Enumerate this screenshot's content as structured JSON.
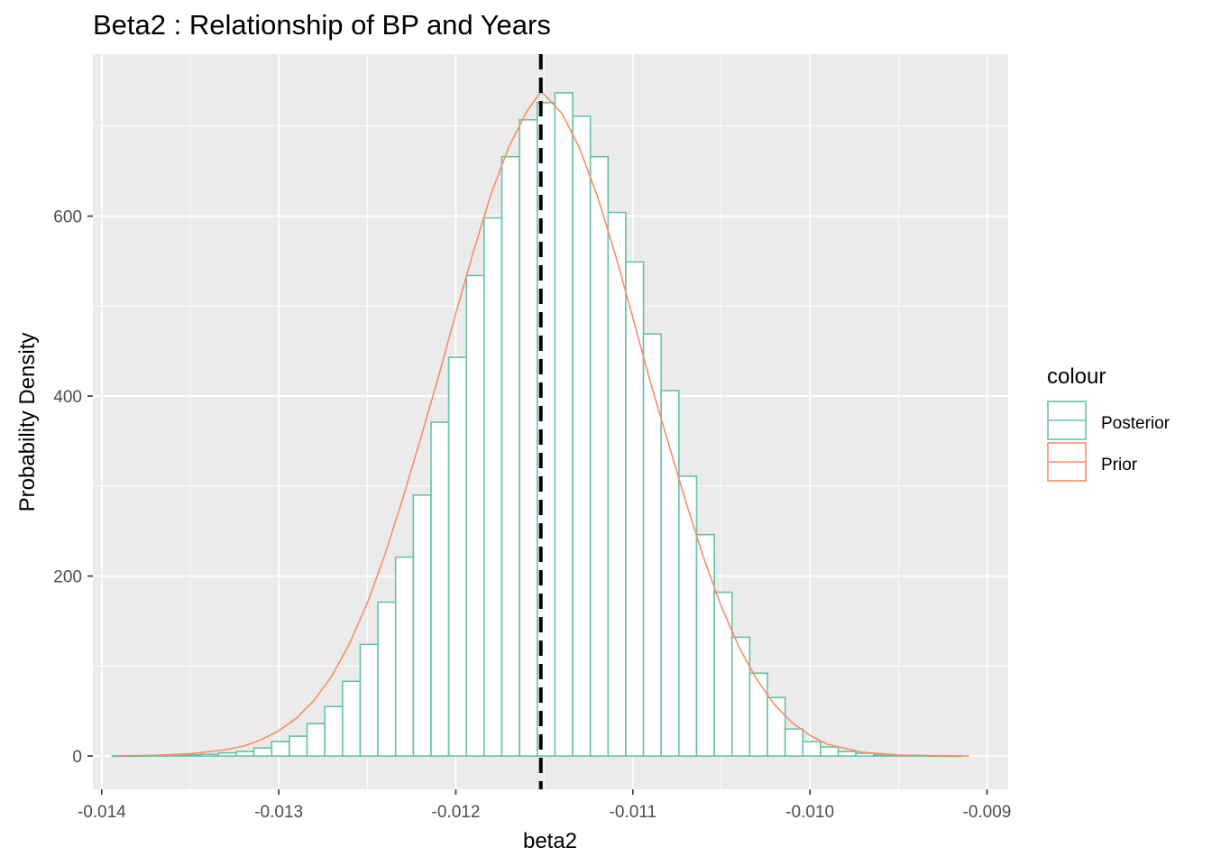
{
  "chart_data": {
    "type": "bar",
    "title": "Beta2 : Relationship of BP and Years",
    "xlabel": "beta2",
    "ylabel": "Probability Density",
    "xlim": [
      -0.01405,
      -0.00888
    ],
    "ylim": [
      -37,
      780
    ],
    "x_ticks": [
      -0.014,
      -0.013,
      -0.012,
      -0.011,
      -0.01,
      -0.009
    ],
    "x_tick_labels": [
      "-0.014",
      "-0.013",
      "-0.012",
      "-0.011",
      "-0.010",
      "-0.009"
    ],
    "y_ticks": [
      0,
      200,
      400,
      600
    ],
    "y_tick_labels": [
      "0",
      "200",
      "400",
      "600"
    ],
    "grid": true,
    "legend": {
      "title": "colour",
      "placement": "right",
      "entries": [
        "Posterior",
        "Prior"
      ]
    },
    "colors": {
      "Posterior": "#66c2a5",
      "Prior": "#fc8d62",
      "vline": "#000000",
      "panel": "#ebebeb",
      "grid": "#ffffff"
    },
    "vline": {
      "x": -0.01152,
      "style": "dashed"
    },
    "bin_width": 0.0001,
    "series": [
      {
        "name": "Posterior",
        "type": "histogram",
        "bin_centers": [
          -0.01389,
          -0.01379,
          -0.01369,
          -0.01359,
          -0.01349,
          -0.01339,
          -0.01329,
          -0.01319,
          -0.01309,
          -0.01299,
          -0.01289,
          -0.01279,
          -0.01269,
          -0.01259,
          -0.01249,
          -0.01239,
          -0.01229,
          -0.01219,
          -0.01209,
          -0.01199,
          -0.01189,
          -0.01179,
          -0.01169,
          -0.01159,
          -0.01149,
          -0.01139,
          -0.01129,
          -0.01119,
          -0.01109,
          -0.01099,
          -0.01089,
          -0.01079,
          -0.01069,
          -0.01059,
          -0.01049,
          -0.01039,
          -0.01029,
          -0.01019,
          -0.01009,
          -0.00999,
          -0.00989,
          -0.00979,
          -0.00969,
          -0.00959,
          -0.00949,
          -0.00939,
          -0.00929,
          -0.00919
        ],
        "values": [
          0.2,
          0.3,
          0.5,
          0.8,
          1.3,
          2,
          3.5,
          5,
          9,
          16,
          22,
          36,
          55,
          83,
          124,
          171,
          221,
          290,
          371,
          443,
          534,
          598,
          666,
          707,
          726,
          737,
          711,
          666,
          604,
          549,
          469,
          406,
          311,
          246,
          182,
          132,
          92,
          65,
          30,
          16,
          10,
          5,
          3,
          1.5,
          0.8,
          0.5,
          0.3,
          0.2
        ]
      },
      {
        "name": "Prior",
        "type": "line",
        "x": [
          -0.0139,
          -0.0137,
          -0.0135,
          -0.0133,
          -0.0132,
          -0.0131,
          -0.013,
          -0.0129,
          -0.0128,
          -0.0127,
          -0.0126,
          -0.0125,
          -0.0124,
          -0.0123,
          -0.0122,
          -0.0121,
          -0.012,
          -0.0119,
          -0.0118,
          -0.0117,
          -0.0116,
          -0.01152,
          -0.0115,
          -0.0114,
          -0.0113,
          -0.0112,
          -0.0111,
          -0.011,
          -0.0109,
          -0.0108,
          -0.0107,
          -0.0106,
          -0.0105,
          -0.0104,
          -0.0103,
          -0.0102,
          -0.0101,
          -0.01,
          -0.0099,
          -0.0097,
          -0.0095,
          -0.0093,
          -0.0091
        ],
        "y": [
          0.3,
          0.8,
          2.5,
          7,
          11,
          18,
          28,
          42,
          62,
          89,
          125,
          170,
          224,
          286,
          352,
          420,
          492,
          561,
          625,
          677,
          716,
          738,
          735,
          714,
          675,
          622,
          558,
          487,
          415,
          348,
          282,
          220,
          166,
          121,
          85,
          57,
          37,
          23,
          13,
          4,
          1.2,
          0.3,
          0.1
        ]
      }
    ]
  }
}
